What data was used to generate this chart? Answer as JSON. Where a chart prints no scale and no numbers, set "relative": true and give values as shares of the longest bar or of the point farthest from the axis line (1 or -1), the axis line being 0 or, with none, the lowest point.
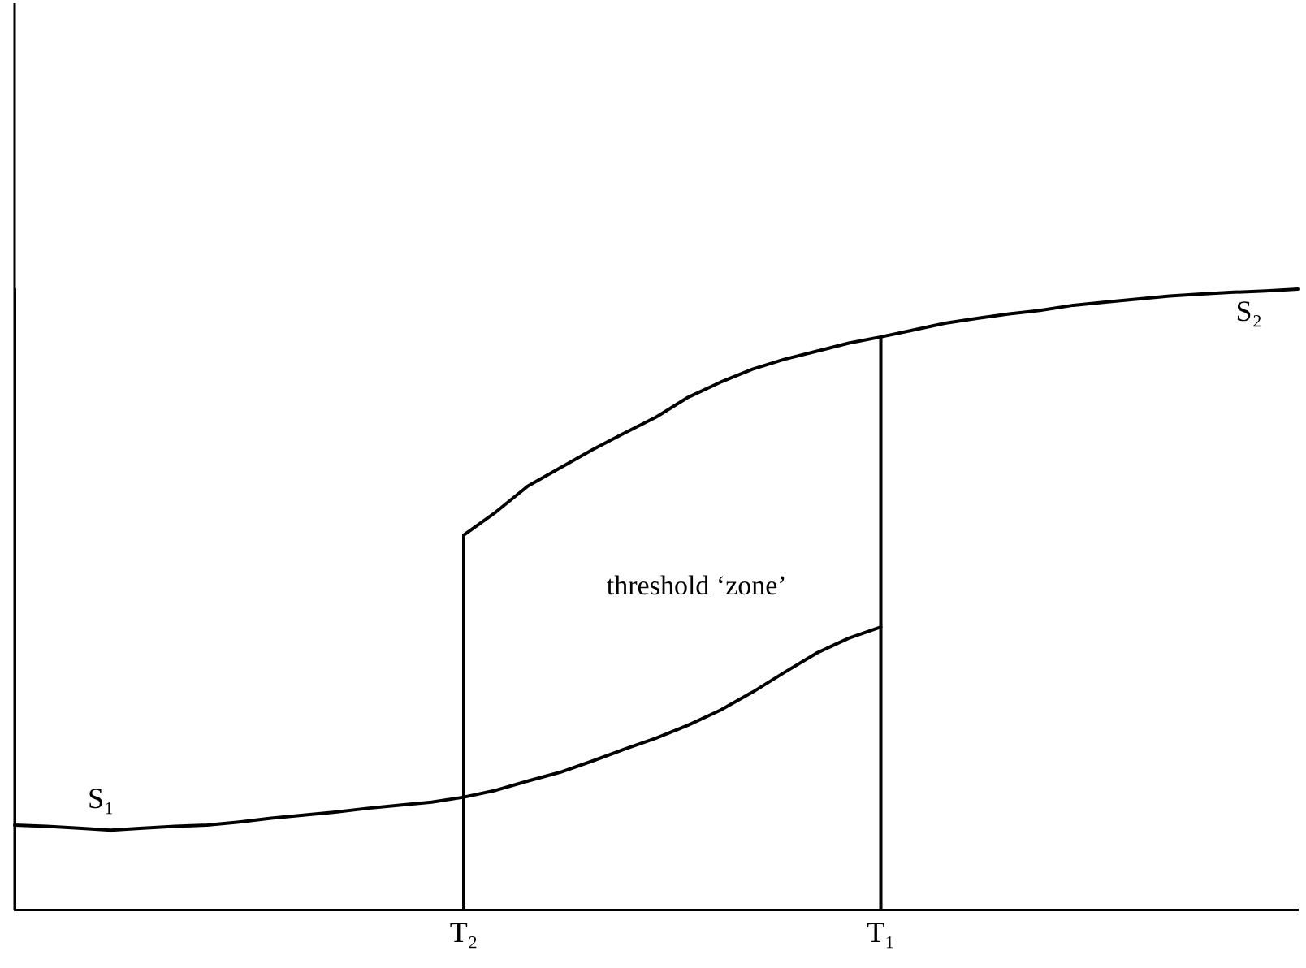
{
  "chart_data": {
    "type": "line",
    "relative": true,
    "tick_labels": "x",
    "annotations": [
      "threshold ‘zone’"
    ],
    "categories": [
      null,
      null,
      null,
      null,
      null,
      null,
      null,
      null,
      null,
      null,
      null,
      null,
      null,
      null,
      "T₂",
      null,
      null,
      null,
      null,
      null,
      null,
      null,
      null,
      null,
      null,
      null,
      null,
      "T₁",
      null,
      null,
      null,
      null,
      null,
      null,
      null,
      null,
      null,
      null,
      null,
      null,
      null
    ],
    "ref_lines": [
      {
        "axis": "x",
        "value": "T₂",
        "color": "#000000"
      },
      {
        "axis": "x",
        "value": "T₁",
        "color": "#000000"
      }
    ],
    "series": [
      {
        "name": "S₁",
        "color": "#000000",
        "values": [
          0.137,
          0.135,
          0.132,
          0.129,
          0.132,
          0.135,
          0.137,
          0.142,
          0.148,
          0.153,
          0.158,
          0.164,
          0.169,
          0.174,
          0.182,
          0.193,
          0.208,
          0.222,
          0.24,
          0.259,
          0.277,
          0.298,
          0.322,
          0.351,
          0.383,
          0.414,
          0.438,
          0.456,
          null,
          null,
          null,
          null,
          null,
          null,
          null,
          null,
          null,
          null,
          null,
          null,
          null
        ]
      },
      {
        "name": "S₂",
        "color": "#000000",
        "values": [
          null,
          null,
          null,
          null,
          null,
          null,
          null,
          null,
          null,
          null,
          null,
          null,
          null,
          null,
          0.604,
          0.641,
          0.683,
          0.712,
          0.741,
          0.768,
          0.794,
          0.826,
          0.85,
          0.871,
          0.887,
          0.9,
          0.913,
          0.923,
          0.934,
          0.945,
          0.953,
          0.96,
          0.966,
          0.974,
          0.979,
          0.984,
          0.989,
          0.992,
          0.995,
          0.997,
          1
        ]
      }
    ]
  }
}
